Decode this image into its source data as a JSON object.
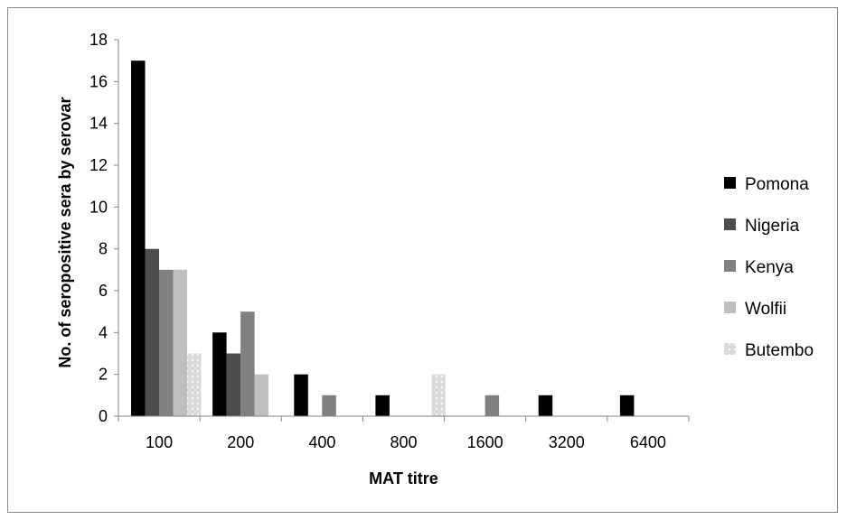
{
  "chart_data": {
    "type": "bar",
    "title": "",
    "xlabel": "MAT titre",
    "ylabel": "No. of seropositive sera by serovar",
    "ylim": [
      0,
      18
    ],
    "yticks": [
      0,
      2,
      4,
      6,
      8,
      10,
      12,
      14,
      16,
      18
    ],
    "categories": [
      "100",
      "200",
      "400",
      "800",
      "1600",
      "3200",
      "6400"
    ],
    "grid": false,
    "legend_position": "right",
    "series": [
      {
        "name": "Pomona",
        "color": "#000000",
        "values": [
          17,
          4,
          2,
          1,
          0,
          1,
          1
        ]
      },
      {
        "name": "Nigeria",
        "color": "#4d4d4d",
        "values": [
          8,
          3,
          0,
          0,
          0,
          0,
          0
        ]
      },
      {
        "name": "Kenya",
        "color": "#808080",
        "values": [
          7,
          5,
          1,
          0,
          1,
          0,
          0
        ]
      },
      {
        "name": "Wolfii",
        "color": "#bfbfbf",
        "values": [
          7,
          2,
          0,
          0,
          0,
          0,
          0
        ]
      },
      {
        "name": "Butembo",
        "color": "#dadada",
        "values": [
          3,
          0,
          0,
          2,
          0,
          0,
          0
        ],
        "pattern": "dotted"
      }
    ]
  }
}
